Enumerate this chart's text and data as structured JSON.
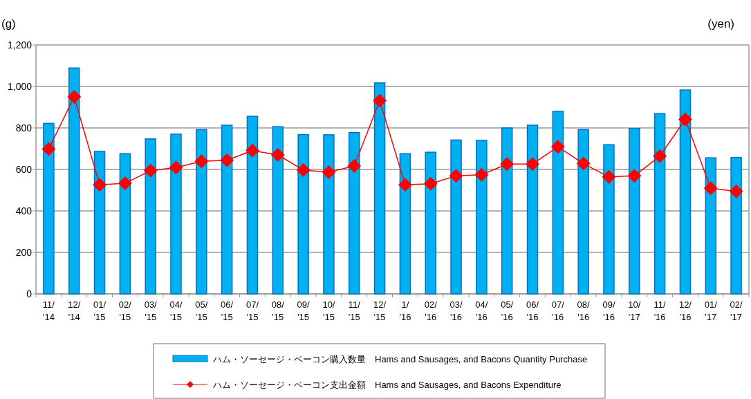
{
  "chart_data": {
    "type": "bar",
    "ylabel": "(g)",
    "y2label": "(yen)",
    "categories": [
      "11/ '14",
      "12/ '14",
      "01/ '15",
      "02/ '15",
      "03/ '15",
      "04/ '15",
      "05/ '15",
      "06/ '15",
      "07/ '15",
      "08/ '15",
      "09/ '15",
      "10/ '15",
      "11/ '15",
      "12/ '15",
      "1/ '16",
      "02/ '16",
      "03/ '16",
      "04/ '16",
      "05/ '16",
      "06/ '16",
      "07/ '16",
      "08/ '16",
      "09/ '16",
      "10/ '17",
      "11/ '16",
      "12/ '16",
      "01/ '17",
      "02/ '17"
    ],
    "series": [
      {
        "name": "ハム・ソーセージ・ベーコン購入数量  Hams and Sausages, and Bacons Quantity Purchase",
        "color": "#00b0f0",
        "values": [
          822,
          1089,
          687,
          676,
          747,
          770,
          792,
          813,
          856,
          806,
          768,
          767,
          778,
          1017,
          676,
          683,
          742,
          740,
          800,
          813,
          880,
          792,
          719,
          797,
          869,
          983,
          656,
          658
        ]
      },
      {
        "name": "ハム・ソーセージ・ベーコン支出金額  Hams and Sausages, and Bacons Expenditure",
        "type": "line",
        "color": "#ff0000",
        "marker": "diamond",
        "values": [
          698,
          950,
          526,
          533,
          594,
          609,
          639,
          644,
          691,
          670,
          597,
          587,
          617,
          932,
          526,
          531,
          569,
          574,
          626,
          626,
          709,
          628,
          564,
          569,
          664,
          841,
          509,
          494
        ]
      }
    ],
    "ylim": [
      0,
      1200
    ],
    "yticks": [
      0,
      200,
      400,
      600,
      800,
      {
        "value": 1000,
        "label": "1,000"
      },
      {
        "value": 1200,
        "label": "1,200"
      }
    ],
    "grid": "y",
    "legend": "bottom"
  }
}
